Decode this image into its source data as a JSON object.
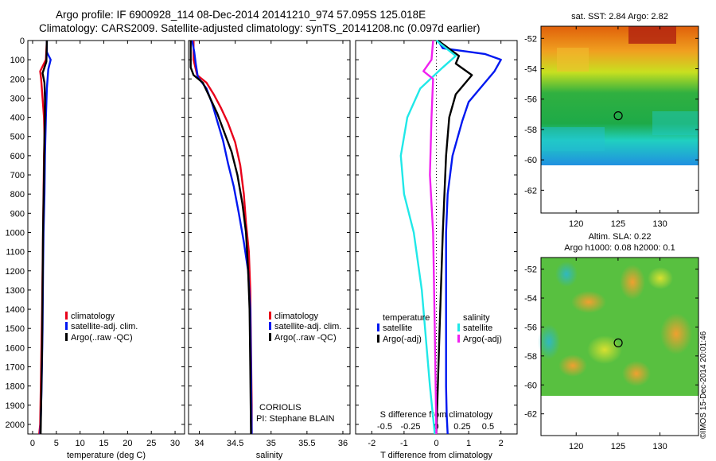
{
  "header": {
    "line1": "Argo profile: IF 6900928_114 08-Dec-2014 20141210_974 57.095S 125.018E",
    "line2": "Climatology: CARS2009. Satellite-adjusted climatology: synTS_20141208.nc (0.097d earlier)"
  },
  "credit": "©IMOS 15-Dec-2014 20:01:46",
  "colors": {
    "red": "#e8001a",
    "blue": "#0018f0",
    "black": "#000000",
    "cyan": "#20e8e8",
    "magenta": "#f020f0"
  },
  "chart_data": [
    {
      "type": "line",
      "id": "temperature",
      "xlabel": "temperature (deg C)",
      "ylabel": "",
      "xlim": [
        -1,
        32
      ],
      "ylim": [
        2050,
        0
      ],
      "xticks": [
        0,
        5,
        10,
        15,
        20,
        25,
        30
      ],
      "yticks": [
        0,
        100,
        200,
        300,
        400,
        500,
        600,
        700,
        800,
        900,
        1000,
        1100,
        1200,
        1300,
        1400,
        1500,
        1600,
        1700,
        1800,
        1900,
        2000
      ],
      "legend": [
        "climatology",
        "satellite-adj. clim.",
        "Argo(..raw -QC)"
      ],
      "series": [
        {
          "name": "climatology",
          "color": "red",
          "x": [
            3.0,
            2.8,
            1.6,
            1.8,
            2.1,
            2.4,
            2.5,
            2.4,
            2.3,
            2.2,
            2.1,
            2.0,
            1.8,
            1.6,
            1.4
          ],
          "y": [
            0,
            100,
            160,
            200,
            300,
            400,
            500,
            600,
            800,
            1000,
            1200,
            1400,
            1700,
            2000,
            2050
          ]
        },
        {
          "name": "satellite-adj. clim.",
          "color": "blue",
          "x": [
            3.0,
            3.0,
            3.8,
            3.3,
            3.0,
            2.8,
            2.6,
            2.5,
            2.3,
            2.2,
            2.1,
            1.9,
            1.7,
            1.6
          ],
          "y": [
            0,
            60,
            100,
            150,
            250,
            400,
            600,
            800,
            1000,
            1200,
            1500,
            1800,
            2000,
            2050
          ]
        },
        {
          "name": "Argo(..raw -QC)",
          "color": "black",
          "x": [
            3.0,
            2.9,
            2.1,
            2.5,
            2.6,
            2.6,
            2.5,
            2.4,
            2.2,
            2.1,
            2.0,
            1.8,
            1.7
          ],
          "y": [
            0,
            110,
            170,
            220,
            300,
            400,
            500,
            700,
            1000,
            1300,
            1600,
            1900,
            2050
          ]
        }
      ]
    },
    {
      "type": "line",
      "id": "salinity",
      "xlabel": "salinity",
      "ylabel": "",
      "xlim": [
        33.85,
        36.1
      ],
      "ylim": [
        2050,
        0
      ],
      "xticks": [
        34,
        34.5,
        35,
        35.5,
        36
      ],
      "legend": [
        "climatology",
        "satellite-adj. clim.",
        "Argo(..raw -QC)"
      ],
      "annotation": [
        "CORIOLIS",
        "PI: Stephane BLAIN"
      ],
      "series": [
        {
          "name": "climatology",
          "color": "red",
          "x": [
            33.92,
            33.92,
            33.97,
            34.1,
            34.2,
            34.3,
            34.4,
            34.5,
            34.57,
            34.62,
            34.65,
            34.69,
            34.71,
            34.72,
            34.73,
            34.73
          ],
          "y": [
            0,
            100,
            180,
            220,
            280,
            350,
            430,
            530,
            650,
            800,
            950,
            1100,
            1300,
            1600,
            1900,
            2050
          ]
        },
        {
          "name": "satellite-adj. clim.",
          "color": "blue",
          "x": [
            33.9,
            33.93,
            33.95,
            33.98,
            34.1,
            34.18,
            34.25,
            34.33,
            34.4,
            34.48,
            34.55,
            34.62,
            34.68,
            34.71,
            34.72,
            34.73
          ],
          "y": [
            0,
            60,
            120,
            190,
            250,
            330,
            420,
            520,
            640,
            760,
            900,
            1050,
            1200,
            1400,
            1700,
            2050
          ]
        },
        {
          "name": "Argo(..raw -QC)",
          "color": "black",
          "x": [
            33.88,
            33.88,
            33.92,
            34.05,
            34.15,
            34.25,
            34.35,
            34.45,
            34.53,
            34.6,
            34.65,
            34.68,
            34.7,
            34.71,
            34.72
          ],
          "y": [
            0,
            140,
            180,
            220,
            300,
            380,
            480,
            580,
            700,
            850,
            1000,
            1200,
            1400,
            1700,
            2050
          ]
        }
      ]
    },
    {
      "type": "line",
      "id": "difference",
      "xlabel": "T difference from climatology",
      "xlabel2": "S difference from climatology",
      "xlim": [
        -2.5,
        2.5
      ],
      "ylim": [
        2050,
        0
      ],
      "xticks": [
        -2,
        -1,
        0,
        1,
        2
      ],
      "xticks2": [
        -0.5,
        -0.25,
        0,
        0.25,
        0.5
      ],
      "legend_temperature_title": "temperature",
      "legend_salinity_title": "salinity",
      "legend_temperature": [
        "satellite",
        "Argo(-adj)"
      ],
      "legend_salinity": [
        "satellite",
        "Argo(-adj)"
      ],
      "series": [
        {
          "name": "temperature satellite",
          "color": "blue",
          "x": [
            0.05,
            0.2,
            1.5,
            2.0,
            1.8,
            1.5,
            1.0,
            0.8,
            0.5,
            0.35,
            0.3,
            0.3,
            0.3,
            0.3,
            0.32,
            0.35
          ],
          "y": [
            0,
            40,
            70,
            100,
            160,
            220,
            320,
            420,
            600,
            800,
            1000,
            1200,
            1500,
            1800,
            1950,
            2050
          ]
        },
        {
          "name": "temperature Argo(-adj)",
          "color": "black",
          "x": [
            0.05,
            0.7,
            0.6,
            1.1,
            0.6,
            0.4,
            0.3,
            0.2,
            0.1,
            0.0
          ],
          "y": [
            0,
            80,
            120,
            180,
            280,
            400,
            600,
            1000,
            1500,
            2050
          ]
        },
        {
          "name": "salinity satellite",
          "color": "cyan",
          "x": [
            0.0,
            0.6,
            0.2,
            -0.5,
            -0.9,
            -1.1,
            -1.0,
            -0.7,
            -0.45,
            -0.3,
            -0.2,
            -0.05
          ],
          "y": [
            0,
            80,
            140,
            250,
            400,
            600,
            800,
            1000,
            1300,
            1600,
            1800,
            2050
          ]
        },
        {
          "name": "salinity Argo(-adj)",
          "color": "magenta",
          "x": [
            -0.1,
            -0.15,
            -0.4,
            -0.1,
            -0.15,
            -0.2,
            -0.1,
            -0.05,
            0.0
          ],
          "y": [
            0,
            100,
            160,
            200,
            400,
            700,
            1000,
            1500,
            2050
          ]
        }
      ]
    }
  ],
  "maps": [
    {
      "id": "sst-map",
      "title": "sat. SST: 2.84  Argo: 2.82",
      "yticks": [
        -52,
        -54,
        -56,
        -58,
        -60,
        -62
      ],
      "xticks": [
        120,
        125,
        130
      ]
    },
    {
      "id": "sla-map",
      "title": "Altim. SLA: 0.22",
      "subtitle": "Argo h1000: 0.08 h2000: 0.1",
      "yticks": [
        -52,
        -54,
        -56,
        -58,
        -60,
        -62
      ],
      "xticks": [
        120,
        125,
        130
      ]
    }
  ]
}
